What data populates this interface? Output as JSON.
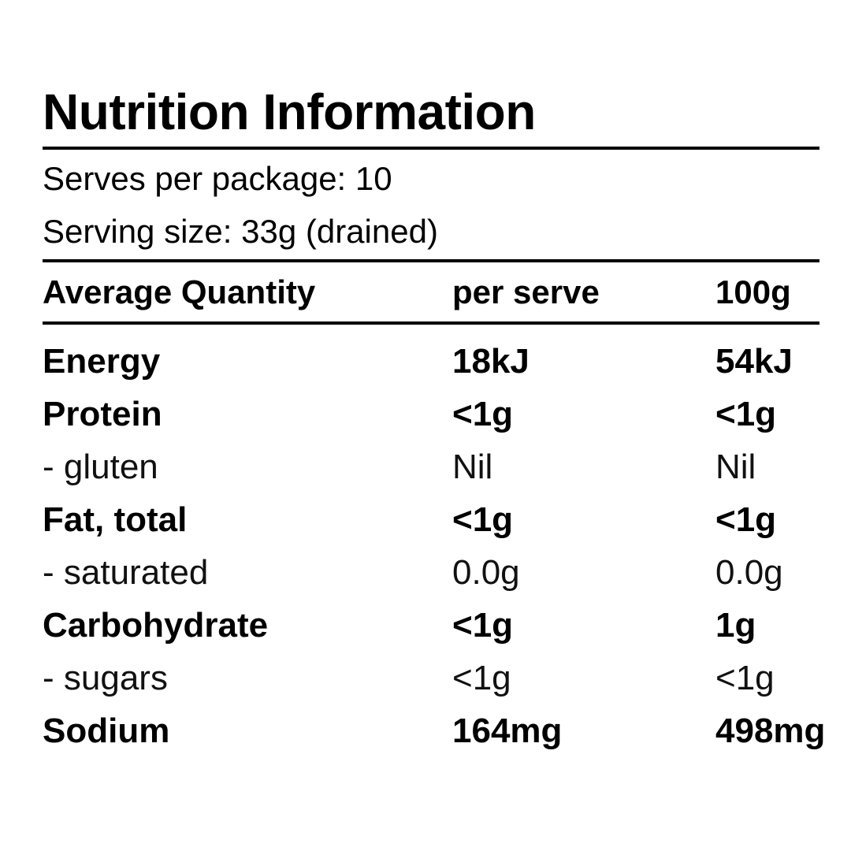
{
  "title": "Nutrition Information",
  "serves_per_package": "Serves per package: 10",
  "serving_size": "Serving size: 33g (drained)",
  "columns": {
    "label": "Average Quantity",
    "per_serve": "per serve",
    "per_100g": "100g"
  },
  "rows": [
    {
      "label": "Energy",
      "per_serve": "18kJ",
      "per_100g": "54kJ",
      "style": "bold"
    },
    {
      "label": "Protein",
      "per_serve": "<1g",
      "per_100g": "<1g",
      "style": "bold"
    },
    {
      "label": "- gluten",
      "per_serve": "Nil",
      "per_100g": "Nil",
      "style": "sub"
    },
    {
      "label": "Fat, total",
      "per_serve": "<1g",
      "per_100g": "<1g",
      "style": "bold"
    },
    {
      "label": "- saturated",
      "per_serve": "0.0g",
      "per_100g": "0.0g",
      "style": "sub"
    },
    {
      "label": "Carbohydrate",
      "per_serve": "<1g",
      "per_100g": "1g",
      "style": "bold"
    },
    {
      "label": "- sugars",
      "per_serve": "<1g",
      "per_100g": "<1g",
      "style": "sub"
    },
    {
      "label": "Sodium",
      "per_serve": "164mg",
      "per_100g": "498mg",
      "style": "bold"
    }
  ]
}
